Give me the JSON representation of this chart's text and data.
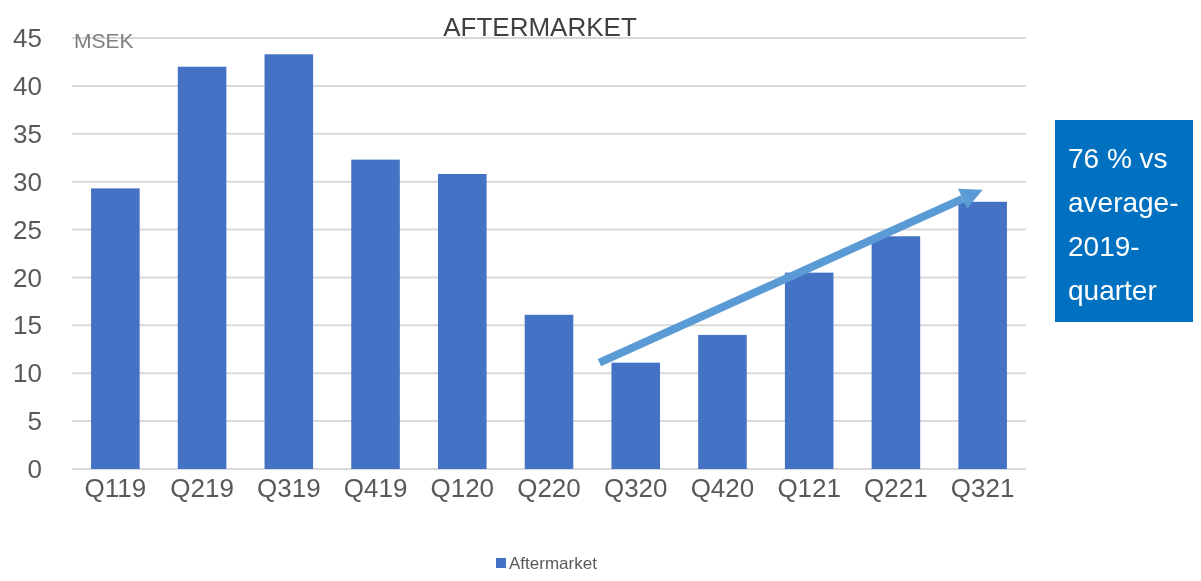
{
  "chart_data": {
    "type": "bar",
    "title": "AFTERMARKET",
    "ylabel": "MSEK",
    "categories": [
      "Q119",
      "Q219",
      "Q319",
      "Q419",
      "Q120",
      "Q220",
      "Q320",
      "Q420",
      "Q121",
      "Q221",
      "Q321"
    ],
    "series": [
      {
        "name": "Aftermarket",
        "color": "#4472c4",
        "values": [
          29.3,
          42,
          43.3,
          32.3,
          30.8,
          16.1,
          11.1,
          14,
          20.5,
          24.3,
          27.9
        ]
      }
    ],
    "ylim": [
      0,
      45
    ],
    "yticks": [
      0,
      5,
      10,
      15,
      20,
      25,
      30,
      35,
      40,
      45
    ],
    "grid": "y",
    "legend": "bottom",
    "annotations": [
      "76 % vs average-2019-quarter"
    ]
  }
}
